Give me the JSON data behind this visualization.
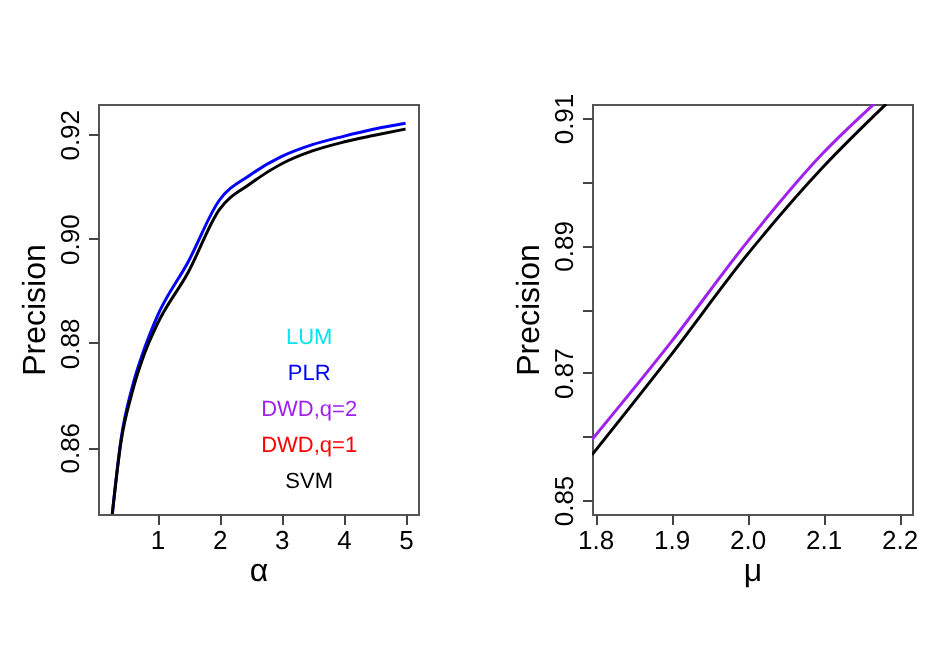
{
  "chart_data": [
    {
      "type": "line",
      "xlabel": "α",
      "ylabel": "Precision",
      "xlim": [
        0.05,
        5.2
      ],
      "ylim": [
        0.8472,
        0.9258
      ],
      "xticks": [
        1,
        2,
        3,
        4,
        5
      ],
      "yticks": [
        0.86,
        0.88,
        {
          "value": 0.9,
          "label": "0.90"
        },
        0.92
      ],
      "legend": "bottom right",
      "grid": false,
      "x": [
        0.28,
        0.42,
        0.6,
        0.8,
        1,
        1.5,
        2,
        2.5,
        3,
        3.5,
        4,
        4.5,
        5
      ],
      "series": [
        {
          "name": "LUM",
          "color": "#00e5ee",
          "values": [
            null,
            null,
            null,
            null,
            null,
            null,
            null,
            null,
            null,
            null,
            null,
            null,
            null
          ]
        },
        {
          "name": "PLR",
          "color": "#0000ff",
          "values": [
            0.8472,
            0.8615,
            0.8715,
            0.879,
            0.885,
            0.8955,
            0.9073,
            0.9122,
            0.9157,
            0.918,
            0.9196,
            0.921,
            0.9221
          ]
        },
        {
          "name": "DWD,q=2",
          "color": "#a020f0",
          "values": [
            null,
            null,
            null,
            null,
            null,
            null,
            null,
            null,
            null,
            null,
            null,
            null,
            null
          ]
        },
        {
          "name": "DWD,q=1",
          "color": "#ff0000",
          "values": [
            null,
            null,
            null,
            null,
            null,
            null,
            null,
            null,
            null,
            null,
            null,
            null,
            null
          ]
        },
        {
          "name": "SVM",
          "color": "#000000",
          "values": [
            0.8472,
            0.861,
            0.8705,
            0.878,
            0.8835,
            0.8935,
            0.9055,
            0.9105,
            0.9143,
            0.9168,
            0.9185,
            0.9198,
            0.921
          ]
        }
      ]
    },
    {
      "type": "line",
      "xlabel": "μ",
      "ylabel": "Precision",
      "xlim": [
        1.796,
        2.217
      ],
      "ylim": [
        0.8478,
        0.9122
      ],
      "xticks": [
        1.8,
        1.9,
        {
          "value": 2.0,
          "label": "2.0"
        },
        2.1,
        2.2
      ],
      "yticks": [
        0.85,
        {
          "value": 0.86,
          "label": null
        },
        0.87,
        {
          "value": 0.88,
          "label": null
        },
        0.89,
        {
          "value": 0.9,
          "label": null
        },
        0.91
      ],
      "grid": false,
      "series": [
        {
          "color": "#a020f0",
          "x": [
            1.796,
            1.9,
            2.0,
            2.1,
            2.167
          ],
          "values": [
            0.8595,
            0.8748,
            0.8905,
            0.9045,
            0.9122
          ]
        },
        {
          "color": "#000000",
          "x": [
            1.796,
            1.9,
            2.0,
            2.1,
            2.183
          ],
          "values": [
            0.8571,
            0.8728,
            0.8885,
            0.9023,
            0.9122
          ]
        }
      ]
    }
  ]
}
